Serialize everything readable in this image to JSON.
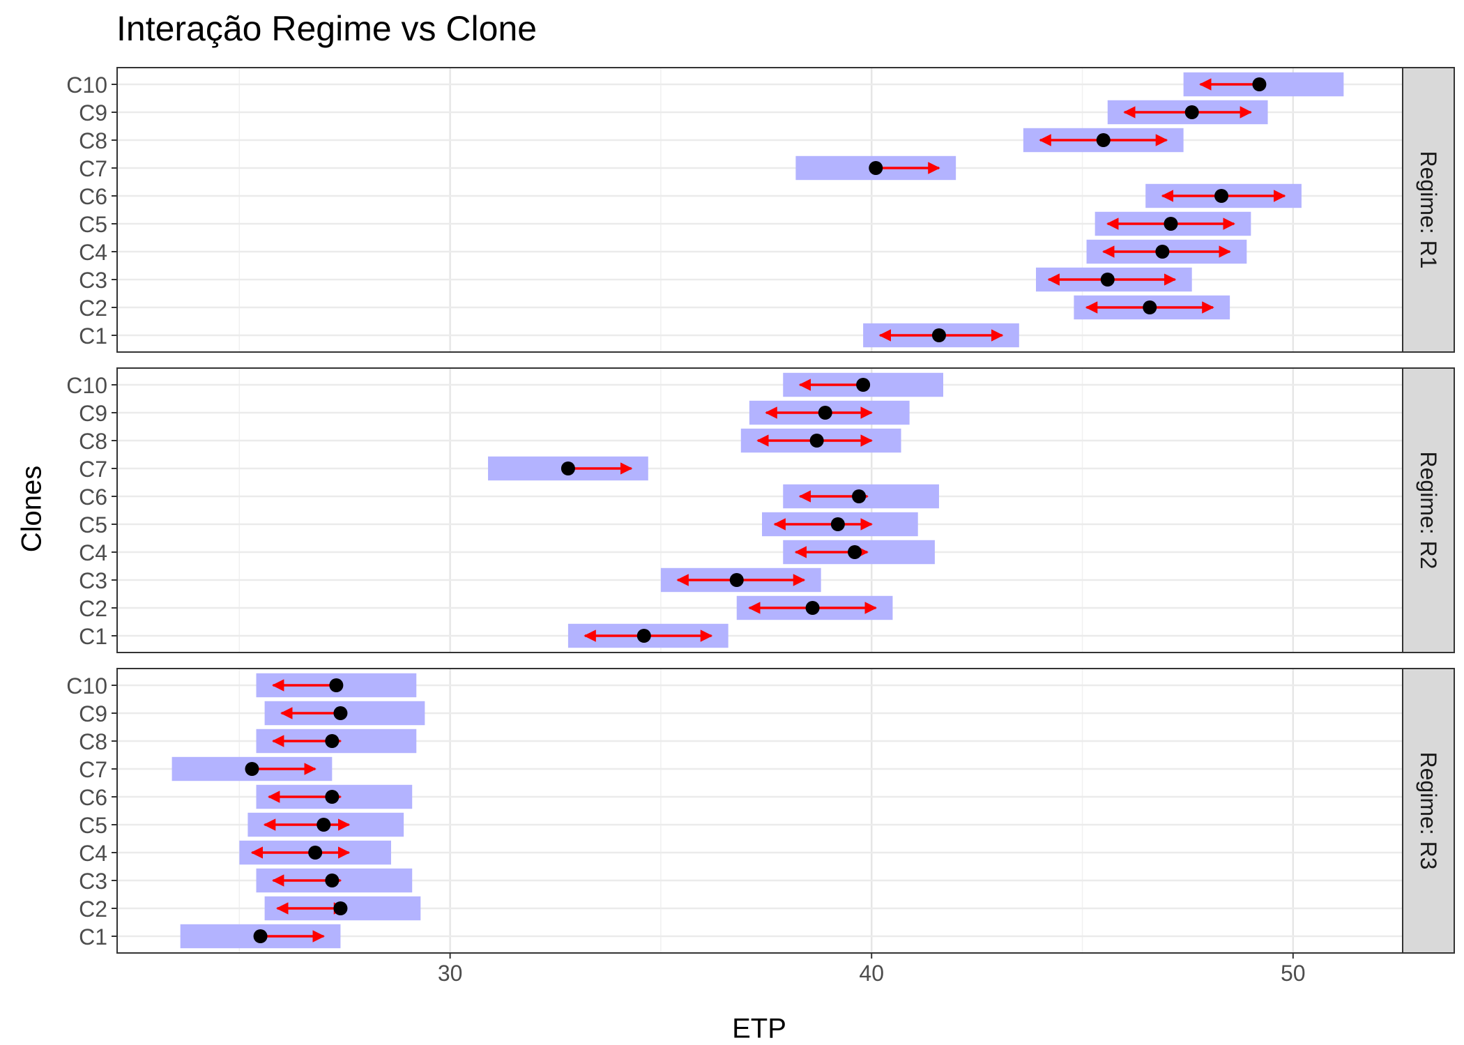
{
  "chart_data": {
    "type": "scatter",
    "title": "Interação Regime vs Clone",
    "xlabel": "ETP",
    "ylabel": "Clones",
    "xlim": [
      22.1,
      52.6
    ],
    "x_ticks": [
      30,
      40,
      50
    ],
    "x_tick_labels": [
      "30",
      "40",
      "50"
    ],
    "categories": [
      "C1",
      "C2",
      "C3",
      "C4",
      "C5",
      "C6",
      "C7",
      "C8",
      "C9",
      "C10"
    ],
    "grid": true,
    "colors": {
      "band": "#b3b3ff",
      "arrow": "#ff0000",
      "point": "#000000",
      "strip": "#d9d9d9"
    },
    "panels": [
      {
        "label": "Regime: R1",
        "clones": [
          {
            "clone": "C1",
            "emmean": 41.6,
            "lower": 39.8,
            "upper": 43.5,
            "arrow_left": 40.2,
            "arrow_right": 43.1
          },
          {
            "clone": "C2",
            "emmean": 46.6,
            "lower": 44.8,
            "upper": 48.5,
            "arrow_left": 45.1,
            "arrow_right": 48.1
          },
          {
            "clone": "C3",
            "emmean": 45.6,
            "lower": 43.9,
            "upper": 47.6,
            "arrow_left": 44.2,
            "arrow_right": 47.2
          },
          {
            "clone": "C4",
            "emmean": 46.9,
            "lower": 45.1,
            "upper": 48.9,
            "arrow_left": 45.5,
            "arrow_right": 48.5
          },
          {
            "clone": "C5",
            "emmean": 47.1,
            "lower": 45.3,
            "upper": 49.0,
            "arrow_left": 45.6,
            "arrow_right": 48.6
          },
          {
            "clone": "C6",
            "emmean": 48.3,
            "lower": 46.5,
            "upper": 50.2,
            "arrow_left": 46.9,
            "arrow_right": 49.8
          },
          {
            "clone": "C7",
            "emmean": 40.1,
            "lower": 38.2,
            "upper": 42.0,
            "arrow_left": null,
            "arrow_right": 41.6
          },
          {
            "clone": "C8",
            "emmean": 45.5,
            "lower": 43.6,
            "upper": 47.4,
            "arrow_left": 44.0,
            "arrow_right": 47.0
          },
          {
            "clone": "C9",
            "emmean": 47.6,
            "lower": 45.6,
            "upper": 49.4,
            "arrow_left": 46.0,
            "arrow_right": 49.0
          },
          {
            "clone": "C10",
            "emmean": 49.2,
            "lower": 47.4,
            "upper": 51.2,
            "arrow_left": 47.8,
            "arrow_right": null
          }
        ]
      },
      {
        "label": "Regime: R2",
        "clones": [
          {
            "clone": "C1",
            "emmean": 34.6,
            "lower": 32.8,
            "upper": 36.6,
            "arrow_left": 33.2,
            "arrow_right": 36.2
          },
          {
            "clone": "C2",
            "emmean": 38.6,
            "lower": 36.8,
            "upper": 40.5,
            "arrow_left": 37.1,
            "arrow_right": 40.1
          },
          {
            "clone": "C3",
            "emmean": 36.8,
            "lower": 35.0,
            "upper": 38.8,
            "arrow_left": 35.4,
            "arrow_right": 38.4
          },
          {
            "clone": "C4",
            "emmean": 39.6,
            "lower": 37.9,
            "upper": 41.5,
            "arrow_left": 38.2,
            "arrow_right": 39.9
          },
          {
            "clone": "C5",
            "emmean": 39.2,
            "lower": 37.4,
            "upper": 41.1,
            "arrow_left": 37.7,
            "arrow_right": 40.0
          },
          {
            "clone": "C6",
            "emmean": 39.7,
            "lower": 37.9,
            "upper": 41.6,
            "arrow_left": 38.3,
            "arrow_right": 39.9
          },
          {
            "clone": "C7",
            "emmean": 32.8,
            "lower": 30.9,
            "upper": 34.7,
            "arrow_left": null,
            "arrow_right": 34.3
          },
          {
            "clone": "C8",
            "emmean": 38.7,
            "lower": 36.9,
            "upper": 40.7,
            "arrow_left": 37.3,
            "arrow_right": 40.0
          },
          {
            "clone": "C9",
            "emmean": 38.9,
            "lower": 37.1,
            "upper": 40.9,
            "arrow_left": 37.5,
            "arrow_right": 40.0
          },
          {
            "clone": "C10",
            "emmean": 39.8,
            "lower": 37.9,
            "upper": 41.7,
            "arrow_left": 38.3,
            "arrow_right": null
          }
        ]
      },
      {
        "label": "Regime: R3",
        "clones": [
          {
            "clone": "C1",
            "emmean": 25.5,
            "lower": 23.6,
            "upper": 27.4,
            "arrow_left": null,
            "arrow_right": 27.0
          },
          {
            "clone": "C2",
            "emmean": 27.4,
            "lower": 25.6,
            "upper": 29.3,
            "arrow_left": 25.9,
            "arrow_right": 27.5
          },
          {
            "clone": "C3",
            "emmean": 27.2,
            "lower": 25.4,
            "upper": 29.1,
            "arrow_left": 25.8,
            "arrow_right": 27.4
          },
          {
            "clone": "C4",
            "emmean": 26.8,
            "lower": 25.0,
            "upper": 28.6,
            "arrow_left": 25.3,
            "arrow_right": 27.6
          },
          {
            "clone": "C5",
            "emmean": 27.0,
            "lower": 25.2,
            "upper": 28.9,
            "arrow_left": 25.6,
            "arrow_right": 27.6
          },
          {
            "clone": "C6",
            "emmean": 27.2,
            "lower": 25.4,
            "upper": 29.1,
            "arrow_left": 25.7,
            "arrow_right": 27.4
          },
          {
            "clone": "C7",
            "emmean": 25.3,
            "lower": 23.4,
            "upper": 27.2,
            "arrow_left": null,
            "arrow_right": 26.8
          },
          {
            "clone": "C8",
            "emmean": 27.2,
            "lower": 25.4,
            "upper": 29.2,
            "arrow_left": 25.8,
            "arrow_right": 27.4
          },
          {
            "clone": "C9",
            "emmean": 27.4,
            "lower": 25.6,
            "upper": 29.4,
            "arrow_left": 26.0,
            "arrow_right": null
          },
          {
            "clone": "C10",
            "emmean": 27.3,
            "lower": 25.4,
            "upper": 29.2,
            "arrow_left": 25.8,
            "arrow_right": null
          }
        ]
      }
    ]
  }
}
